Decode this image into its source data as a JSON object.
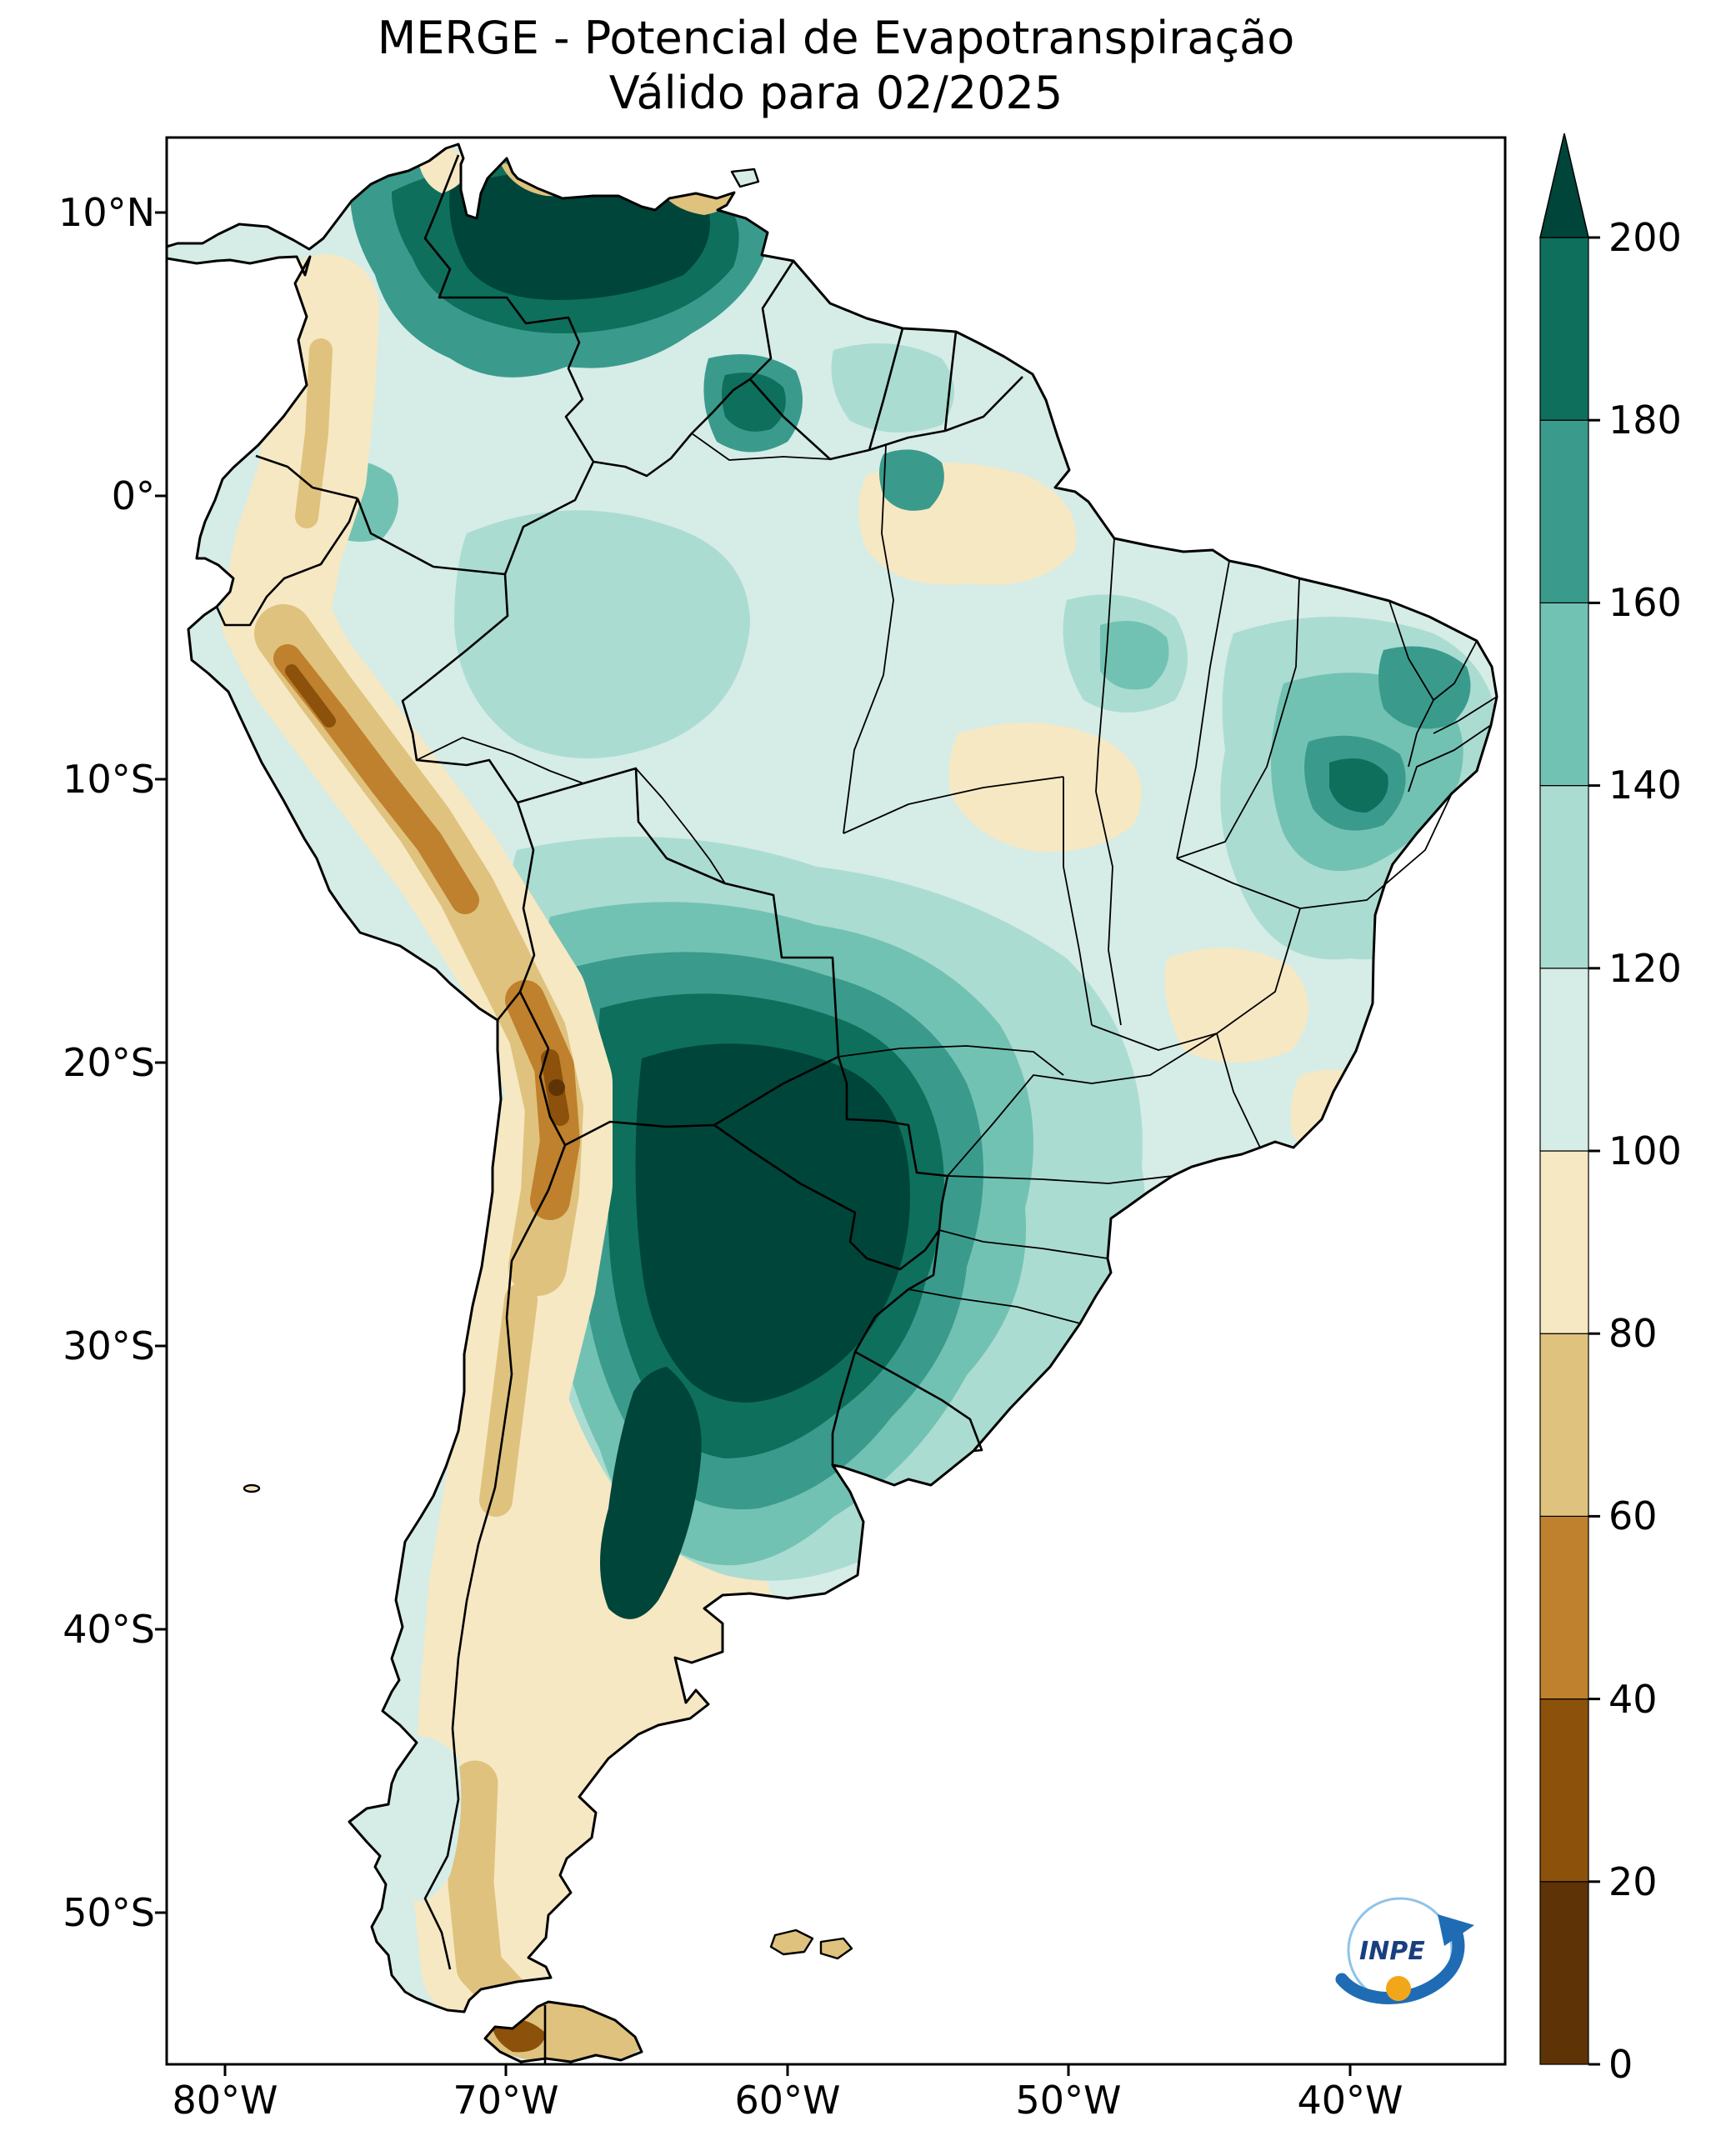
{
  "title": {
    "line1": "MERGE - Potencial de Evapotranspiração",
    "line2": "Válido para 02/2025"
  },
  "axes": {
    "lat_ticks": [
      {
        "label": "10°N"
      },
      {
        "label": "0°"
      },
      {
        "label": "10°S"
      },
      {
        "label": "20°S"
      },
      {
        "label": "30°S"
      },
      {
        "label": "40°S"
      },
      {
        "label": "50°S"
      }
    ],
    "lon_ticks": [
      {
        "label": "80°W"
      },
      {
        "label": "70°W"
      },
      {
        "label": "60°W"
      },
      {
        "label": "50°W"
      },
      {
        "label": "40°W"
      }
    ]
  },
  "colorbar": {
    "ticks": [
      "0",
      "20",
      "40",
      "60",
      "80",
      "100",
      "120",
      "140",
      "160",
      "180",
      "200"
    ],
    "segments": [
      "#5e3306",
      "#8c510a",
      "#bf812d",
      "#dfc27d",
      "#f6e8c3",
      "#d6ece7",
      "#abdcd1",
      "#72c2b3",
      "#3a9b8d",
      "#0e6f5c"
    ],
    "extend_color": "#00453a"
  },
  "palette": {
    "seg0": "#5e3306",
    "seg1": "#8c510a",
    "seg2": "#bf812d",
    "seg3": "#dfc27d",
    "seg4": "#f6e8c3",
    "seg5": "#d6ece7",
    "seg6": "#abdcd1",
    "seg7": "#72c2b3",
    "seg8": "#3a9b8d",
    "seg9": "#0e6f5c",
    "ext": "#00453a",
    "border": "#000000"
  },
  "logo": {
    "text": "INPE",
    "arrow_color": "#1f6cb4",
    "ring_color": "#8fc3e8",
    "ball_color": "#f2a71b",
    "text_color": "#1a3f7e"
  },
  "chart_data": {
    "type": "heatmap",
    "title": "MERGE - Potencial de Evapotranspiração",
    "subtitle": "Válido para 02/2025",
    "region": "South America",
    "x_ticks": [
      "80°W",
      "70°W",
      "60°W",
      "50°W",
      "40°W"
    ],
    "y_ticks": [
      "10°N",
      "0°",
      "10°S",
      "20°S",
      "30°S",
      "40°S",
      "50°S"
    ],
    "colorbar_levels": [
      0,
      20,
      40,
      60,
      80,
      100,
      120,
      140,
      160,
      180,
      200
    ],
    "colorbar_extend": "max",
    "colormap": "brown-to-teal diverging (BrBG-like), browns = low, teals = high",
    "features": [
      {
        "area": "Northern Venezuela / Caribbean Colombia llanos",
        "value_range": "180 to >200"
      },
      {
        "area": "Paraguay, NE Argentina and adjacent S Brazil (Chaco core)",
        "value_range": "180 to >200"
      },
      {
        "area": "Amazon basin",
        "value_range": "100-140"
      },
      {
        "area": "Northeast Brazil interior (sertão)",
        "value_range": "140-200"
      },
      {
        "area": "Guyana highlands spot",
        "value_range": "160-200"
      },
      {
        "area": "Andes cordillera, Peruvian coast and Altiplano",
        "value_range": "0-80"
      },
      {
        "area": "Central-western Argentina and Patagonia",
        "value_range": "60-100"
      },
      {
        "area": "Tierra del Fuego and Magallanes",
        "value_range": "20-80"
      },
      {
        "area": "Pampas / Uruguay / coastal SE Brazil",
        "value_range": "100-120"
      }
    ]
  }
}
